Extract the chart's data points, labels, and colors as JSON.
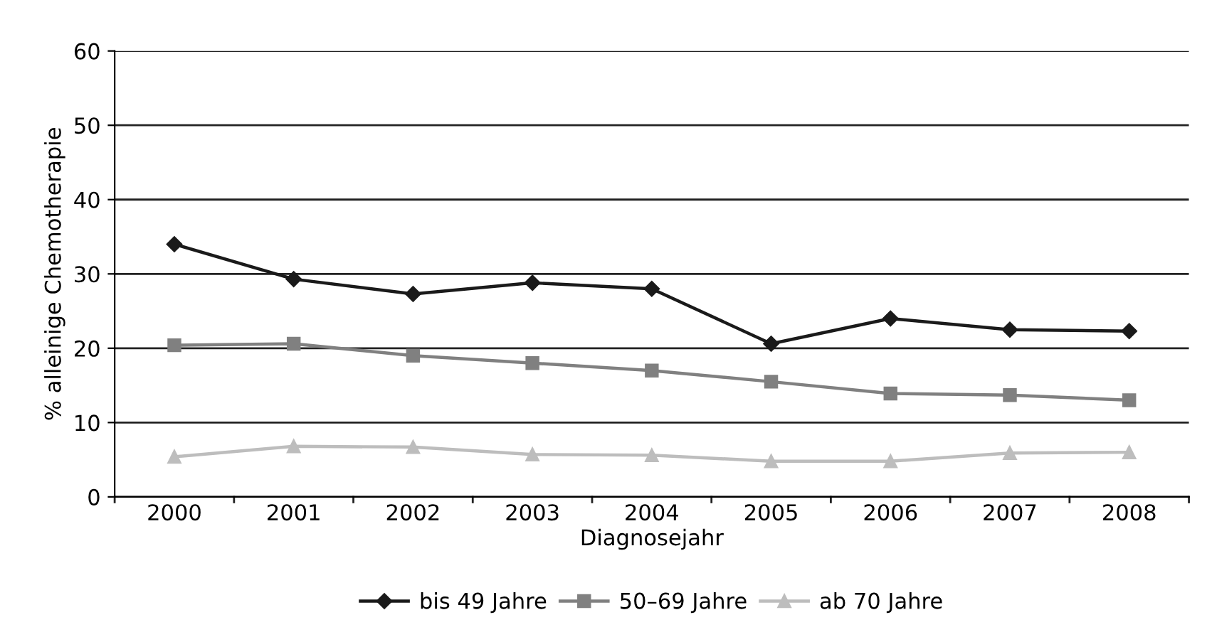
{
  "chart_data": {
    "type": "line",
    "xlabel": "Diagnosejahr",
    "ylabel": "% alleinige Chemotherapie",
    "categories": [
      "2000",
      "2001",
      "2002",
      "2003",
      "2004",
      "2005",
      "2006",
      "2007",
      "2008"
    ],
    "series": [
      {
        "name": "bis 49 Jahre",
        "color": "#1a1a1a",
        "marker": "diamond",
        "values": [
          34,
          29.3,
          27.3,
          28.8,
          28,
          20.6,
          24,
          22.5,
          22.3
        ]
      },
      {
        "name": "50–69 Jahre",
        "color": "#808080",
        "marker": "square",
        "values": [
          20.4,
          20.6,
          19,
          18,
          17,
          15.5,
          13.9,
          13.7,
          13
        ]
      },
      {
        "name": "ab 70 Jahre",
        "color": "#bdbdbd",
        "marker": "triangle",
        "values": [
          5.4,
          6.8,
          6.7,
          5.7,
          5.6,
          4.8,
          4.8,
          5.9,
          6
        ]
      }
    ],
    "ylim": [
      0,
      60
    ],
    "yticks": [
      0,
      10,
      20,
      30,
      40,
      50,
      60
    ],
    "grid": "y",
    "legend": "bottom",
    "line_style": "solid"
  }
}
